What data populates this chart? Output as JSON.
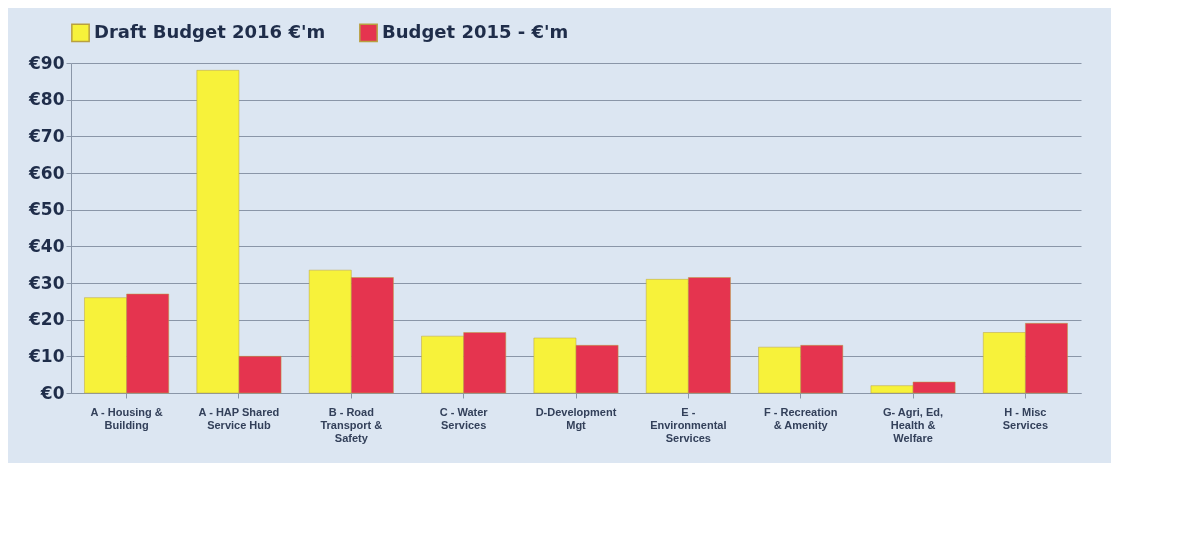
{
  "chart_data": {
    "type": "bar",
    "categories": [
      "A - Housing & Building",
      "A - HAP Shared Service Hub",
      "B - Road Transport & Safety",
      "C - Water Services",
      "D-Development Mgt",
      "E - Environmental Services",
      "F - Recreation & Amenity",
      "G- Agri, Ed, Health & Welfare",
      "H - Misc Services"
    ],
    "series": [
      {
        "name": "Draft Budget 2016 €'m",
        "color": "#f7f23a",
        "values": [
          26,
          88,
          33.5,
          15.5,
          15,
          31,
          12.5,
          2,
          16.5
        ]
      },
      {
        "name": "Budget 2015 - €'m",
        "color": "#e5344f",
        "values": [
          27,
          10,
          31.5,
          16.5,
          13,
          31.5,
          13,
          3,
          19
        ]
      }
    ],
    "ylim": [
      0,
      90
    ],
    "yticks": [
      {
        "value": 0,
        "label": "€0"
      },
      {
        "value": 10,
        "label": "€10"
      },
      {
        "value": 20,
        "label": "€20"
      },
      {
        "value": 30,
        "label": "€30"
      },
      {
        "value": 40,
        "label": "€40"
      },
      {
        "value": 50,
        "label": "€50"
      },
      {
        "value": 60,
        "label": "€60"
      },
      {
        "value": 70,
        "label": "€70"
      },
      {
        "value": 80,
        "label": "€80"
      },
      {
        "value": 90,
        "label": "€90"
      }
    ],
    "grid": "y",
    "legend": "top"
  }
}
